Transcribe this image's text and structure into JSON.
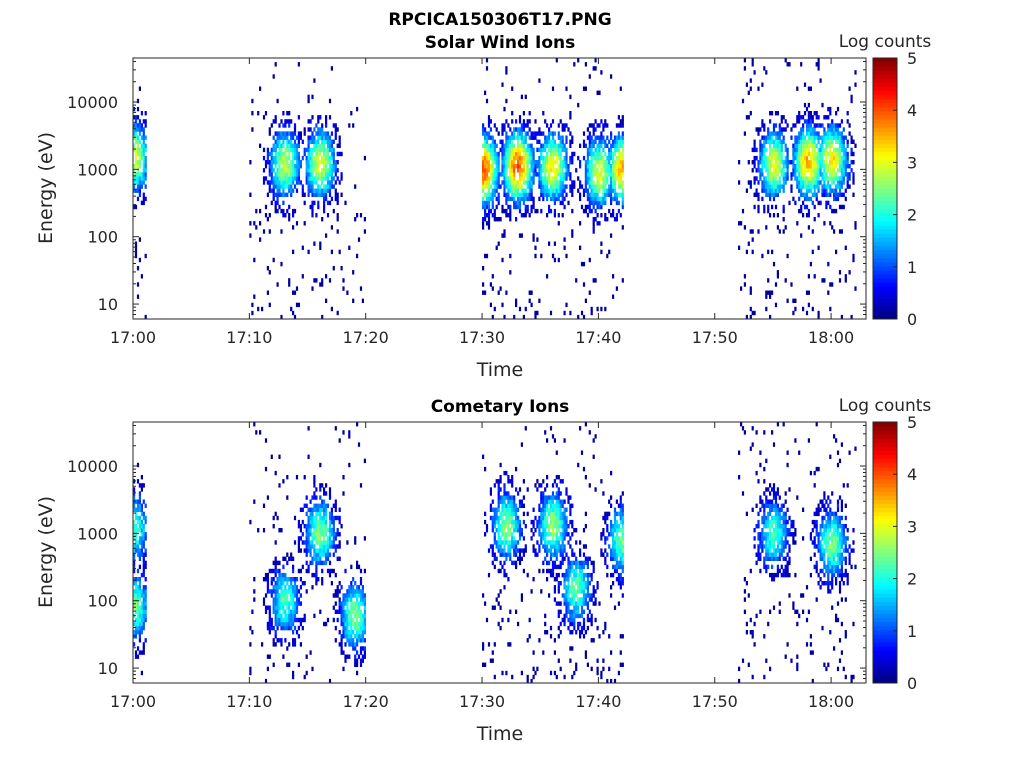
{
  "figure": {
    "title": "RPCICA150306T17.PNG"
  },
  "colorbar": {
    "label": "Log counts",
    "ticks": [
      "0",
      "1",
      "2",
      "3",
      "4",
      "5"
    ],
    "range": [
      0,
      5
    ],
    "colormap": "jet"
  },
  "chart_data": [
    {
      "type": "heatmap",
      "title": "Solar Wind Ions",
      "xlabel": "Time",
      "ylabel": "Energy (eV)",
      "yscale": "log",
      "ylim_ev": [
        6,
        45000
      ],
      "xlim_minutes_after_1700": [
        0,
        63
      ],
      "xticks": [
        "17:00",
        "17:10",
        "17:20",
        "17:30",
        "17:40",
        "17:50",
        "18:00"
      ],
      "yticks": [
        "10",
        "100",
        "1000",
        "10000"
      ],
      "coverage_intervals": [
        [
          "17:00",
          "17:01"
        ],
        [
          "17:10",
          "17:20"
        ],
        [
          "17:30",
          "17:42"
        ],
        [
          "17:52",
          "18:02"
        ]
      ],
      "peaks": [
        {
          "time": "17:00",
          "energy_ev": 1500,
          "log_counts": 3.0
        },
        {
          "time": "17:13",
          "energy_ev": 1200,
          "log_counts": 2.8
        },
        {
          "time": "17:16",
          "energy_ev": 1200,
          "log_counts": 3.0
        },
        {
          "time": "17:30",
          "energy_ev": 1000,
          "log_counts": 4.0
        },
        {
          "time": "17:33",
          "energy_ev": 1100,
          "log_counts": 4.0
        },
        {
          "time": "17:36",
          "energy_ev": 1100,
          "log_counts": 3.2
        },
        {
          "time": "17:40",
          "energy_ev": 900,
          "log_counts": 3.0
        },
        {
          "time": "17:42",
          "energy_ev": 1000,
          "log_counts": 3.5
        },
        {
          "time": "17:55",
          "energy_ev": 1200,
          "log_counts": 3.0
        },
        {
          "time": "17:58",
          "energy_ev": 1300,
          "log_counts": 3.5
        },
        {
          "time": "18:00",
          "energy_ev": 1400,
          "log_counts": 3.2
        }
      ]
    },
    {
      "type": "heatmap",
      "title": "Cometary Ions",
      "xlabel": "Time",
      "ylabel": "Energy (eV)",
      "yscale": "log",
      "ylim_ev": [
        6,
        45000
      ],
      "xlim_minutes_after_1700": [
        0,
        63
      ],
      "xticks": [
        "17:00",
        "17:10",
        "17:20",
        "17:30",
        "17:40",
        "17:50",
        "18:00"
      ],
      "yticks": [
        "10",
        "100",
        "1000",
        "10000"
      ],
      "coverage_intervals": [
        [
          "17:00",
          "17:01"
        ],
        [
          "17:10",
          "17:20"
        ],
        [
          "17:30",
          "17:42"
        ],
        [
          "17:52",
          "18:02"
        ]
      ],
      "peaks": [
        {
          "time": "17:00",
          "energy_ev": 80,
          "log_counts": 2.5
        },
        {
          "time": "17:00",
          "energy_ev": 1200,
          "log_counts": 2.2
        },
        {
          "time": "17:13",
          "energy_ev": 100,
          "log_counts": 2.2
        },
        {
          "time": "17:16",
          "energy_ev": 1000,
          "log_counts": 2.5
        },
        {
          "time": "17:19",
          "energy_ev": 60,
          "log_counts": 2.5
        },
        {
          "time": "17:32",
          "energy_ev": 1300,
          "log_counts": 2.5
        },
        {
          "time": "17:36",
          "energy_ev": 1300,
          "log_counts": 2.6
        },
        {
          "time": "17:38",
          "energy_ev": 150,
          "log_counts": 2.3
        },
        {
          "time": "17:42",
          "energy_ev": 800,
          "log_counts": 2.4
        },
        {
          "time": "17:55",
          "energy_ev": 1000,
          "log_counts": 2.2
        },
        {
          "time": "18:00",
          "energy_ev": 700,
          "log_counts": 2.5
        }
      ]
    }
  ]
}
